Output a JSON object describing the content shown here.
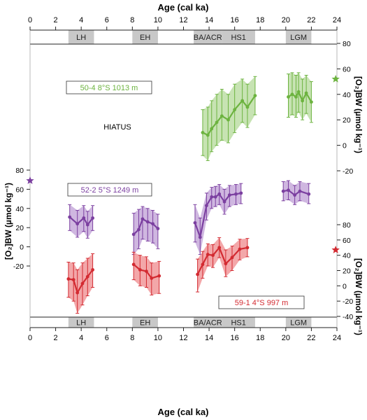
{
  "chart_data": {
    "type": "line",
    "x_axis": {
      "label": "Age (cal ka)",
      "range": [
        0,
        24
      ],
      "ticks": [
        0,
        2,
        4,
        6,
        8,
        10,
        12,
        14,
        16,
        18,
        20,
        22,
        24
      ]
    },
    "periods": [
      {
        "label": "LH",
        "from": 3.0,
        "to": 5.0
      },
      {
        "label": "EH",
        "from": 8.0,
        "to": 10.0
      },
      {
        "label": "BA/ACR",
        "from": 12.8,
        "to": 15.0
      },
      {
        "label": "HS1",
        "from": 15.0,
        "to": 17.6
      },
      {
        "label": "LGM",
        "from": 20.0,
        "to": 22.0
      }
    ],
    "annotations": {
      "hiatus": "HIATUS",
      "y_label_left": "[O₂]BW (µmol kg⁻¹)",
      "y_label_right_top": "[O₂]BW (µmol kg⁻¹)",
      "y_label_right_bottom": "[O₂]BW (µmol kg⁻¹)"
    },
    "axes": {
      "green_right": {
        "ticks": [
          80,
          60,
          40,
          20,
          0,
          -20
        ],
        "range": [
          -20,
          80
        ]
      },
      "purple_left": {
        "ticks": [
          80,
          60,
          40,
          20,
          0,
          -20
        ],
        "range": [
          -20,
          80
        ]
      },
      "red_right": {
        "ticks": [
          80,
          60,
          40,
          20,
          0,
          -20,
          -40
        ],
        "range": [
          -40,
          80
        ]
      }
    },
    "series": [
      {
        "name": "50-4 8°S 1013 m",
        "color": "#6cb33f",
        "fill": "#b4d99a",
        "star": {
          "x": 23.9,
          "y": 52
        },
        "segments": [
          [
            {
              "x": 13.5,
              "y": 10,
              "lo": -8,
              "hi": 28
            },
            {
              "x": 13.9,
              "y": 8,
              "lo": -12,
              "hi": 30
            },
            {
              "x": 14.2,
              "y": 13,
              "lo": -5,
              "hi": 35
            },
            {
              "x": 14.6,
              "y": 18,
              "lo": 0,
              "hi": 40
            },
            {
              "x": 15.0,
              "y": 23,
              "lo": 4,
              "hi": 44
            },
            {
              "x": 15.5,
              "y": 20,
              "lo": 2,
              "hi": 40
            },
            {
              "x": 16.0,
              "y": 28,
              "lo": 10,
              "hi": 48
            },
            {
              "x": 16.6,
              "y": 35,
              "lo": 18,
              "hi": 52
            },
            {
              "x": 17.0,
              "y": 30,
              "lo": 14,
              "hi": 48
            },
            {
              "x": 17.6,
              "y": 39,
              "lo": 24,
              "hi": 54
            }
          ],
          [
            {
              "x": 20.2,
              "y": 38,
              "lo": 22,
              "hi": 56
            },
            {
              "x": 20.5,
              "y": 40,
              "lo": 24,
              "hi": 57
            },
            {
              "x": 20.8,
              "y": 38,
              "lo": 22,
              "hi": 55
            },
            {
              "x": 21.0,
              "y": 42,
              "lo": 26,
              "hi": 57
            },
            {
              "x": 21.3,
              "y": 35,
              "lo": 20,
              "hi": 52
            },
            {
              "x": 21.6,
              "y": 41,
              "lo": 25,
              "hi": 55
            },
            {
              "x": 22.0,
              "y": 34,
              "lo": 18,
              "hi": 50
            }
          ]
        ]
      },
      {
        "name": "52-2 5°S 1249 m",
        "color": "#7b3fa0",
        "fill": "#bf9fd6",
        "star": {
          "x": 0,
          "y": 69
        },
        "segments": [
          [
            {
              "x": 3.1,
              "y": 31,
              "lo": 17,
              "hi": 44
            },
            {
              "x": 3.7,
              "y": 24,
              "lo": 10,
              "hi": 38
            },
            {
              "x": 4.2,
              "y": 30,
              "lo": 16,
              "hi": 43
            },
            {
              "x": 4.5,
              "y": 23,
              "lo": 9,
              "hi": 37
            },
            {
              "x": 4.9,
              "y": 30,
              "lo": 17,
              "hi": 43
            }
          ],
          [
            {
              "x": 8.1,
              "y": 13,
              "lo": -8,
              "hi": 35
            },
            {
              "x": 8.5,
              "y": 18,
              "lo": -2,
              "hi": 39
            },
            {
              "x": 8.8,
              "y": 29,
              "lo": 8,
              "hi": 42
            },
            {
              "x": 9.2,
              "y": 26,
              "lo": 6,
              "hi": 40
            },
            {
              "x": 9.6,
              "y": 24,
              "lo": 4,
              "hi": 38
            },
            {
              "x": 10.0,
              "y": 19,
              "lo": -2,
              "hi": 34
            }
          ],
          [
            {
              "x": 12.9,
              "y": 25,
              "lo": 5,
              "hi": 44
            },
            {
              "x": 13.3,
              "y": 10,
              "lo": -8,
              "hi": 30
            },
            {
              "x": 13.8,
              "y": 43,
              "lo": 28,
              "hi": 56
            },
            {
              "x": 14.2,
              "y": 52,
              "lo": 40,
              "hi": 62
            },
            {
              "x": 14.5,
              "y": 52,
              "lo": 42,
              "hi": 63
            },
            {
              "x": 14.8,
              "y": 55,
              "lo": 44,
              "hi": 65
            },
            {
              "x": 15.2,
              "y": 47,
              "lo": 34,
              "hi": 60
            },
            {
              "x": 15.6,
              "y": 54,
              "lo": 42,
              "hi": 64
            },
            {
              "x": 16.1,
              "y": 55,
              "lo": 44,
              "hi": 65
            },
            {
              "x": 16.5,
              "y": 56,
              "lo": 45,
              "hi": 66
            }
          ],
          [
            {
              "x": 19.8,
              "y": 58,
              "lo": 48,
              "hi": 68
            },
            {
              "x": 20.2,
              "y": 59,
              "lo": 49,
              "hi": 69
            },
            {
              "x": 20.7,
              "y": 54,
              "lo": 44,
              "hi": 64
            },
            {
              "x": 21.1,
              "y": 58,
              "lo": 48,
              "hi": 68
            },
            {
              "x": 21.8,
              "y": 55,
              "lo": 45,
              "hi": 66
            }
          ]
        ]
      },
      {
        "name": "59-1 4°S 997 m",
        "color": "#d32a31",
        "fill": "#ef8a8c",
        "star": {
          "x": 23.9,
          "y": 47
        },
        "segments": [
          [
            {
              "x": 3.0,
              "y": 9,
              "lo": -15,
              "hi": 31
            },
            {
              "x": 3.4,
              "y": 8,
              "lo": -20,
              "hi": 30
            },
            {
              "x": 3.7,
              "y": -9,
              "lo": -36,
              "hi": 21
            },
            {
              "x": 4.1,
              "y": 3,
              "lo": -25,
              "hi": 30
            },
            {
              "x": 4.5,
              "y": 12,
              "lo": -13,
              "hi": 36
            },
            {
              "x": 4.9,
              "y": 21,
              "lo": -2,
              "hi": 42
            }
          ],
          [
            {
              "x": 8.1,
              "y": 28,
              "lo": 8,
              "hi": 44
            },
            {
              "x": 8.6,
              "y": 21,
              "lo": 0,
              "hi": 40
            },
            {
              "x": 9.1,
              "y": 19,
              "lo": -2,
              "hi": 38
            },
            {
              "x": 9.5,
              "y": 10,
              "lo": -12,
              "hi": 30
            },
            {
              "x": 10.1,
              "y": 13,
              "lo": -10,
              "hi": 32
            }
          ],
          [
            {
              "x": 13.1,
              "y": 15,
              "lo": -8,
              "hi": 35
            },
            {
              "x": 13.5,
              "y": 28,
              "lo": 10,
              "hi": 45
            },
            {
              "x": 13.9,
              "y": 41,
              "lo": 26,
              "hi": 55
            },
            {
              "x": 14.3,
              "y": 40,
              "lo": 24,
              "hi": 54
            },
            {
              "x": 14.8,
              "y": 50,
              "lo": 37,
              "hi": 63
            },
            {
              "x": 15.3,
              "y": 29,
              "lo": 12,
              "hi": 47
            },
            {
              "x": 15.8,
              "y": 37,
              "lo": 20,
              "hi": 52
            },
            {
              "x": 16.4,
              "y": 48,
              "lo": 34,
              "hi": 61
            },
            {
              "x": 17.0,
              "y": 50,
              "lo": 38,
              "hi": 62
            }
          ]
        ]
      }
    ]
  }
}
